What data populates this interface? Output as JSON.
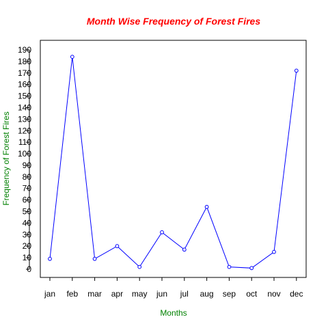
{
  "chart_data": {
    "type": "line",
    "title": "Month Wise Frequency of Forest Fires",
    "xlabel": "Months",
    "ylabel": "Frequency of Forest Fires",
    "categories": [
      "jan",
      "feb",
      "mar",
      "apr",
      "may",
      "jun",
      "jul",
      "aug",
      "sep",
      "oct",
      "nov",
      "dec"
    ],
    "series": [
      {
        "values": [
          9,
          184,
          9,
          20,
          2,
          32,
          17,
          54,
          2,
          1,
          15,
          172
        ]
      }
    ],
    "ylim": [
      0,
      190
    ],
    "ytick_step": 10,
    "grid": false,
    "legend": "none",
    "colors": {
      "title": "#ff0000",
      "axis_labels": "#008000",
      "line": "#0000ff",
      "axes": "#000000"
    }
  }
}
